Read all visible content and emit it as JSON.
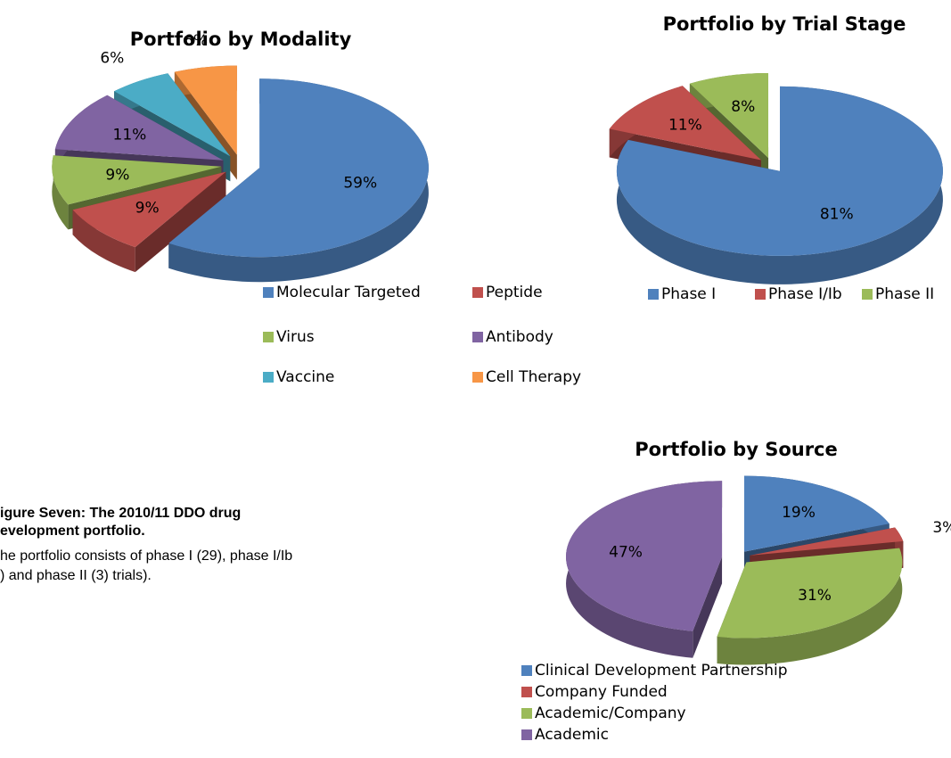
{
  "chart_data": [
    {
      "type": "pie",
      "title": "Portfolio by Modality",
      "categories": [
        "Molecular Targeted",
        "Peptide",
        "Virus",
        "Antibody",
        "Vaccine",
        "Cell Therapy"
      ],
      "values": [
        59,
        9,
        9,
        11,
        6,
        6
      ],
      "value_labels": [
        "59%",
        "9%",
        "9%",
        "11%",
        "6%",
        "6%"
      ],
      "colors": [
        "#4f81bd",
        "#c0504d",
        "#9bbb59",
        "#8064a2",
        "#4bacc6",
        "#f79646"
      ],
      "legend": "bottom"
    },
    {
      "type": "pie",
      "title": "Portfolio by Trial Stage",
      "categories": [
        "Phase I",
        "Phase I/Ib",
        "Phase II"
      ],
      "values": [
        81,
        11,
        8
      ],
      "value_labels": [
        "81%",
        "11%",
        "8%"
      ],
      "colors": [
        "#4f81bd",
        "#c0504d",
        "#9bbb59"
      ],
      "legend": "bottom"
    },
    {
      "type": "pie",
      "title": "Portfolio by Source",
      "categories": [
        "Clinical Development Partnership",
        "Company Funded",
        "Academic/Company",
        "Academic"
      ],
      "values": [
        19,
        3,
        31,
        47
      ],
      "value_labels": [
        "19%",
        "3%",
        "31%",
        "47%"
      ],
      "colors": [
        "#4f81bd",
        "#c0504d",
        "#9bbb59",
        "#8064a2"
      ],
      "legend": "bottom"
    }
  ],
  "caption": {
    "title_lines": [
      "igure Seven: The 2010/11 DDO drug",
      "evelopment portfolio."
    ],
    "body_lines": [
      "he portfolio consists of phase I (29), phase I/Ib",
      ") and phase II (3) trials)."
    ]
  }
}
